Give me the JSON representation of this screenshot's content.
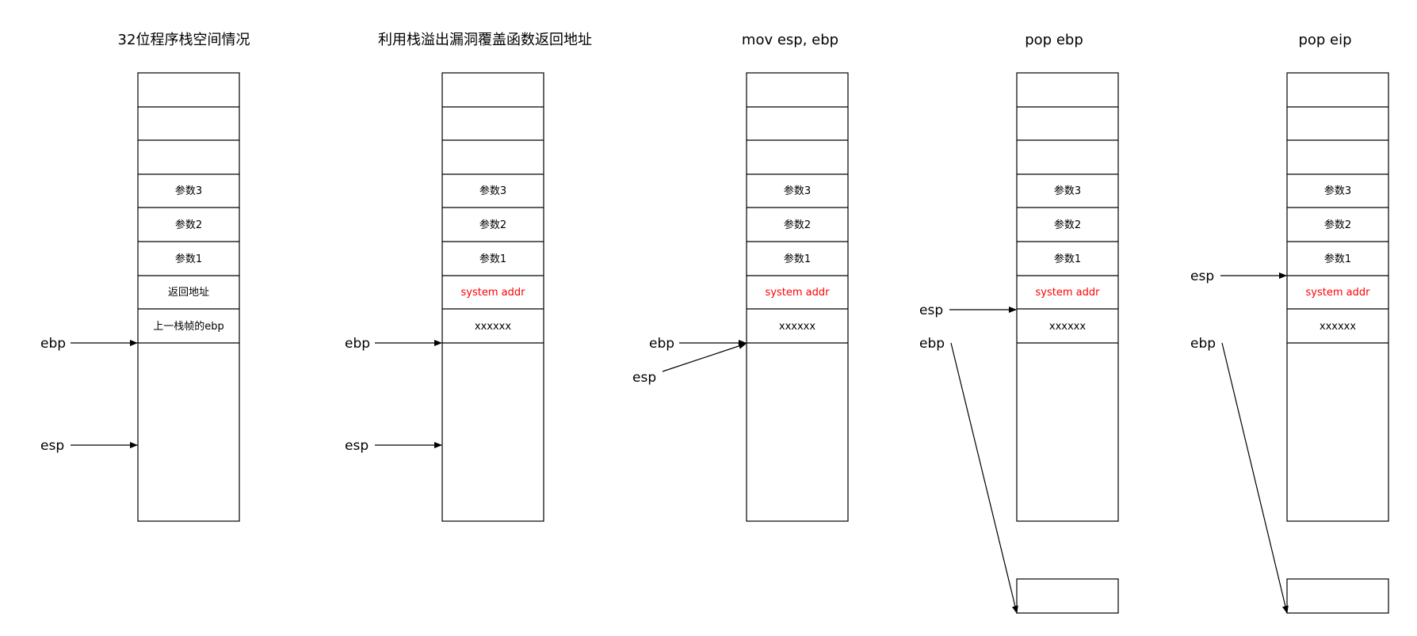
{
  "panels": [
    {
      "title": "32位程序栈空间情况",
      "cells": [
        "",
        "",
        "",
        "参数3",
        "参数2",
        "参数1",
        "返回地址",
        "上一栈帧的ebp"
      ],
      "highlight_cells": [],
      "pointers": [
        {
          "label": "ebp",
          "target": "below-saved-ebp"
        },
        {
          "label": "esp",
          "target": "stack-lower"
        }
      ]
    },
    {
      "title": "利用栈溢出漏洞覆盖函数返回地址",
      "cells": [
        "",
        "",
        "",
        "参数3",
        "参数2",
        "参数1",
        "system addr",
        "xxxxxx"
      ],
      "highlight_cells": [
        6
      ],
      "pointers": [
        {
          "label": "ebp",
          "target": "below-xxxxxx"
        },
        {
          "label": "esp",
          "target": "stack-lower"
        }
      ]
    },
    {
      "title": "mov esp, ebp",
      "cells": [
        "",
        "",
        "",
        "参数3",
        "参数2",
        "参数1",
        "system addr",
        "xxxxxx"
      ],
      "highlight_cells": [
        6
      ],
      "pointers": [
        {
          "label": "ebp",
          "target": "below-xxxxxx"
        },
        {
          "label": "esp",
          "target": "below-xxxxxx"
        }
      ]
    },
    {
      "title": "pop ebp",
      "cells": [
        "",
        "",
        "",
        "参数3",
        "参数2",
        "参数1",
        "system addr",
        "xxxxxx"
      ],
      "highlight_cells": [
        6
      ],
      "pointers": [
        {
          "label": "esp",
          "target": "system-addr"
        },
        {
          "label": "ebp",
          "target": "detached-box"
        }
      ]
    },
    {
      "title": "pop eip",
      "cells": [
        "",
        "",
        "",
        "参数3",
        "参数2",
        "参数1",
        "system addr",
        "xxxxxx"
      ],
      "highlight_cells": [
        6
      ],
      "pointers": [
        {
          "label": "esp",
          "target": "param1"
        },
        {
          "label": "ebp",
          "target": "detached-box"
        }
      ]
    }
  ],
  "colors": {
    "stroke": "#000000",
    "text": "#000000",
    "highlight": "#ff0000"
  }
}
